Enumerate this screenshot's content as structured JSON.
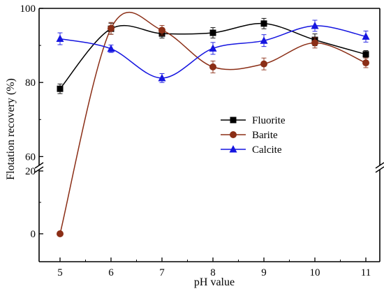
{
  "chart_data": {
    "type": "line",
    "xlabel": "pH value",
    "ylabel": "Flotation recovery (%)",
    "x": [
      5,
      6,
      7,
      8,
      9,
      10,
      11
    ],
    "x_ticks": [
      "5",
      "6",
      "7",
      "8",
      "9",
      "10",
      "11"
    ],
    "xlim": [
      5,
      11
    ],
    "y_ticks_upper": [
      "60",
      "80",
      "100"
    ],
    "y_ticks_lower": [
      "0",
      "20"
    ],
    "ylim_upper": [
      58,
      100
    ],
    "ylim_lower": [
      0,
      21
    ],
    "axis_break": true,
    "legend": "center-right",
    "series": [
      {
        "name": "Fluorite",
        "marker": "square",
        "color": "#000000",
        "values": [
          78.3,
          94.5,
          93.2,
          93.4,
          95.9,
          91.5,
          87.6
        ],
        "errors": [
          1.3,
          1.5,
          1.2,
          1.4,
          1.4,
          1.6,
          1.0
        ]
      },
      {
        "name": "Barite",
        "marker": "circle",
        "color": "#8B2E16",
        "values": [
          0.0,
          94.6,
          94.1,
          84.2,
          85.0,
          90.7,
          85.3
        ],
        "errors": [
          0.5,
          1.6,
          1.3,
          1.6,
          1.6,
          1.4,
          1.3
        ]
      },
      {
        "name": "Calcite",
        "marker": "triangle",
        "color": "#1515E0",
        "values": [
          91.8,
          89.1,
          81.2,
          89.2,
          91.3,
          95.3,
          92.4
        ],
        "errors": [
          1.6,
          1.0,
          1.2,
          1.6,
          1.6,
          1.5,
          1.5
        ]
      }
    ]
  }
}
